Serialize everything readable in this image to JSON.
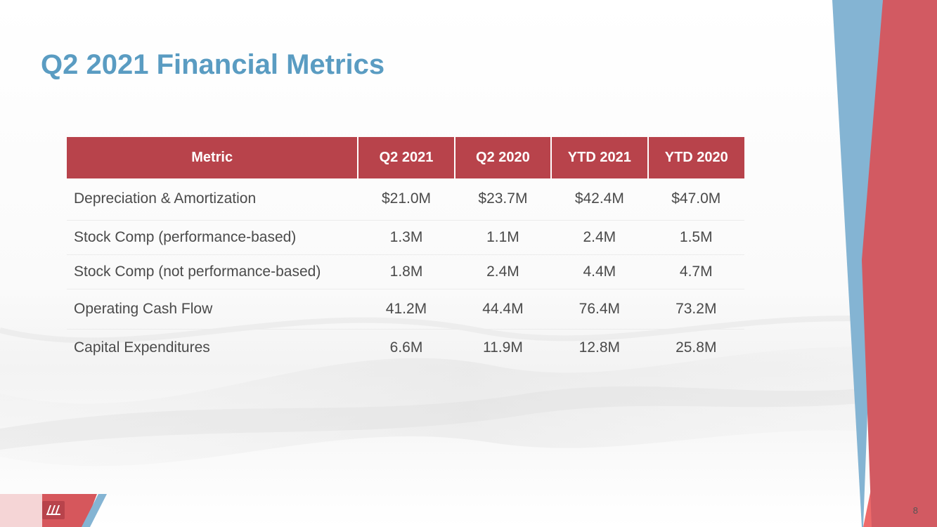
{
  "slide": {
    "title": "Q2 2021 Financial Metrics",
    "page_number": "8"
  },
  "table": {
    "headers": [
      "Metric",
      "Q2 2021",
      "Q2 2020",
      "YTD 2021",
      "YTD 2020"
    ],
    "rows": [
      {
        "metric": "Depreciation & Amortization",
        "values": [
          "$21.0M",
          "$23.7M",
          "$42.4M",
          "$47.0M"
        ]
      },
      {
        "metric": "Stock Comp (performance-based)",
        "values": [
          "1.3M",
          "1.1M",
          "2.4M",
          "1.5M"
        ]
      },
      {
        "metric": "Stock Comp (not performance-based)",
        "values": [
          "1.8M",
          "2.4M",
          "4.4M",
          "4.7M"
        ]
      },
      {
        "metric": "Operating Cash Flow",
        "values": [
          "41.2M",
          "44.4M",
          "76.4M",
          "73.2M"
        ]
      },
      {
        "metric": "Capital Expenditures",
        "values": [
          "6.6M",
          "11.9M",
          "12.8M",
          "25.8M"
        ]
      }
    ]
  },
  "colors": {
    "title": "#5a9cc2",
    "header_fill": "#b8434b",
    "accent_red": "#d25a62",
    "accent_blue": "#84b4d3",
    "accent_coral": "#ee6a6a"
  },
  "icons": {
    "logo": "company-logo-icon"
  }
}
